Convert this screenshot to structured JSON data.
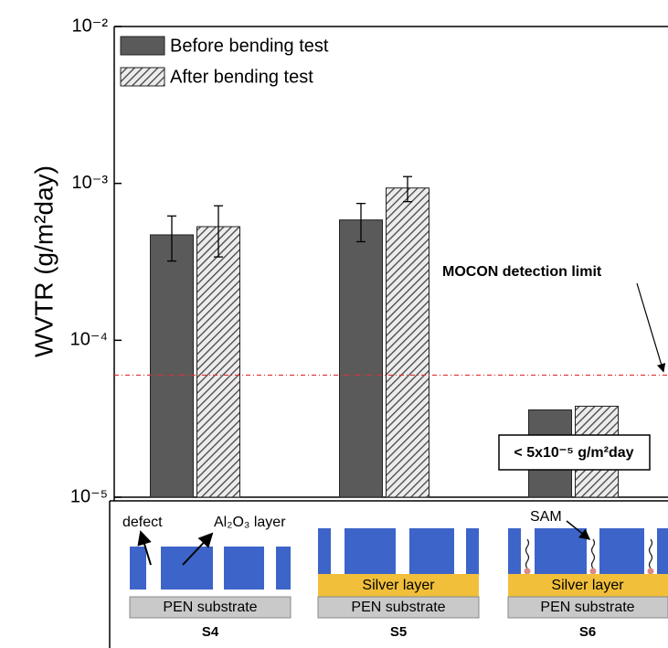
{
  "chart_data": {
    "type": "bar",
    "y_label": "WVTR (g/m²day)",
    "categories": [
      "S4",
      "S5",
      "S6"
    ],
    "series": [
      {
        "name": "Before bending test",
        "color": "#5a5a5a",
        "hatch": false,
        "values": [
          0.00047,
          0.000585,
          3.6e-05
        ],
        "errors": [
          0.00015,
          0.00016,
          null
        ]
      },
      {
        "name": "After bending test",
        "color": "#5a5a5a",
        "hatch": true,
        "values": [
          0.00053,
          0.000935,
          3.8e-05
        ],
        "errors": [
          0.00019,
          0.00017,
          null
        ]
      }
    ],
    "ylim": [
      1e-05,
      0.01
    ],
    "yticks": [
      {
        "value": 1e-05,
        "label": "10⁻⁵"
      },
      {
        "value": 0.0001,
        "label": "10⁻⁴"
      },
      {
        "value": 0.001,
        "label": "10⁻³"
      },
      {
        "value": 0.01,
        "label": "10⁻²"
      }
    ],
    "log_y": true,
    "legend": "upper left",
    "reference_line": {
      "value": 6e-05,
      "label": "MOCON detection limit",
      "color": "#e03030"
    },
    "annotation": "< 5x10⁻⁵ g/m²day"
  },
  "diagram": {
    "defect": "defect",
    "al2o3": "Al₂O₃ layer",
    "sam": "SAM",
    "silver": [
      "Silver layer",
      "Silver layer"
    ],
    "pen": [
      "PEN substrate",
      "PEN substrate",
      "PEN substrate"
    ]
  }
}
